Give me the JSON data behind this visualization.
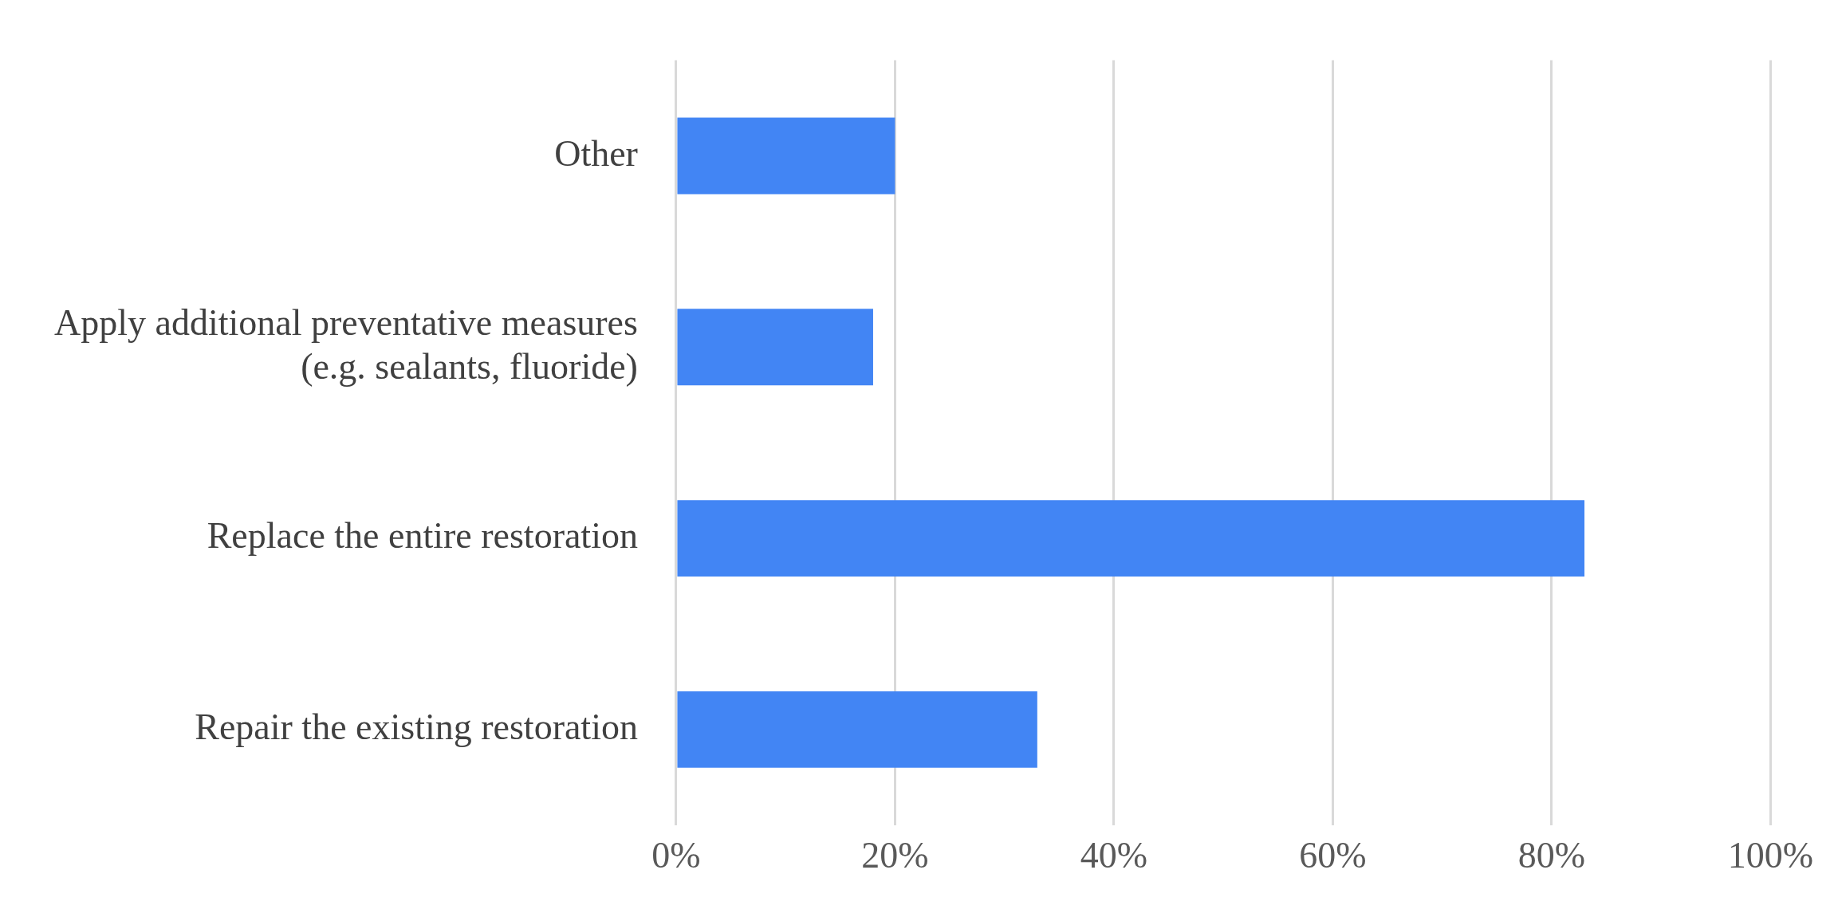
{
  "chart_data": {
    "type": "bar",
    "orientation": "horizontal",
    "categories": [
      "Other",
      "Apply additional preventative measures (e.g. sealants, fluoride)",
      "Replace the entire restoration",
      "Repair the existing restoration"
    ],
    "values": [
      20,
      18,
      83,
      33
    ],
    "color": "#4285f4",
    "xlim": [
      0,
      100
    ],
    "xticks": [
      {
        "value": 0,
        "label": "0%"
      },
      {
        "value": 20,
        "label": "20%"
      },
      {
        "value": 40,
        "label": "40%"
      },
      {
        "value": 60,
        "label": "60%"
      },
      {
        "value": 80,
        "label": "80%"
      },
      {
        "value": 100,
        "label": "100%"
      }
    ],
    "grid": "x",
    "legend": false
  }
}
